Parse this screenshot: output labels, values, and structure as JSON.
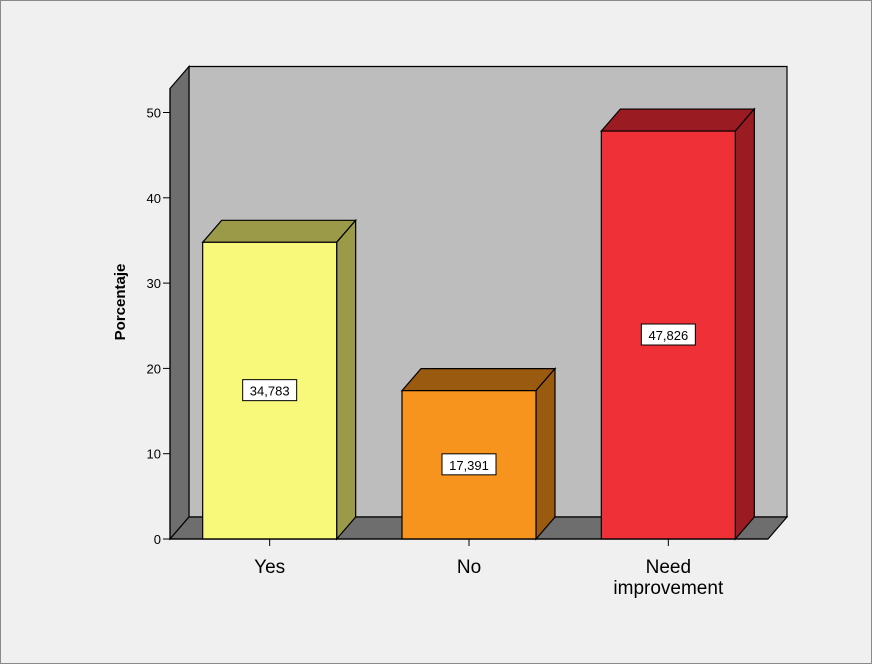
{
  "chart_data": {
    "type": "bar",
    "categories": [
      "Yes",
      "No",
      "Need improvement"
    ],
    "category_lines": [
      [
        "Yes"
      ],
      [
        "No"
      ],
      [
        "Need",
        "improvement"
      ]
    ],
    "values": [
      34.783,
      17.391,
      47.826
    ],
    "data_labels": [
      "34,783",
      "17,391",
      "47,826"
    ],
    "ylabel": "Porcentaje",
    "ylim": [
      0,
      50
    ],
    "yticks": [
      0,
      10,
      20,
      30,
      40,
      50
    ],
    "grid": false,
    "legend": "none",
    "style": "3d",
    "colors": [
      {
        "front": "#f8f87a",
        "side": "#9a9a48",
        "top": "#9a9a48"
      },
      {
        "front": "#f7941d",
        "side": "#9a5a10",
        "top": "#9a5a10"
      },
      {
        "front": "#ef3037",
        "side": "#9a1c22",
        "top": "#9a1c22"
      }
    ],
    "wall_colors": {
      "back": "#bdbdbd",
      "left": "#6e6e6e",
      "floor": "#6e6e6e"
    }
  }
}
